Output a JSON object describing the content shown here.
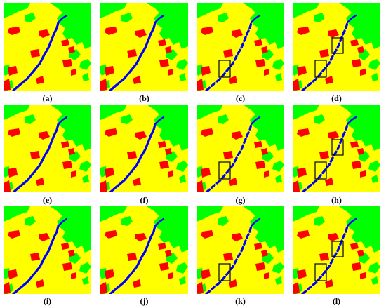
{
  "figure": {
    "panels": [
      {
        "caption": "(a)",
        "variant": "full",
        "boxes": 0
      },
      {
        "caption": "(b)",
        "variant": "full",
        "boxes": 0
      },
      {
        "caption": "(c)",
        "variant": "broken",
        "boxes": 1
      },
      {
        "caption": "(d)",
        "variant": "broken",
        "boxes": 2
      },
      {
        "caption": "(e)",
        "variant": "full",
        "boxes": 0
      },
      {
        "caption": "(f)",
        "variant": "full",
        "boxes": 0
      },
      {
        "caption": "(g)",
        "variant": "broken",
        "boxes": 1
      },
      {
        "caption": "(h)",
        "variant": "broken",
        "boxes": 2
      },
      {
        "caption": "(i)",
        "variant": "full",
        "boxes": 0
      },
      {
        "caption": "(j)",
        "variant": "full",
        "boxes": 0
      },
      {
        "caption": "(k)",
        "variant": "broken",
        "boxes": 1
      },
      {
        "caption": "(l)",
        "variant": "broken",
        "boxes": 2
      }
    ],
    "colors": {
      "background": "#ffff00",
      "vegetation": "#00ff00",
      "buildings": "#ff0000",
      "water": "#0000ff",
      "box": "#000000"
    }
  }
}
